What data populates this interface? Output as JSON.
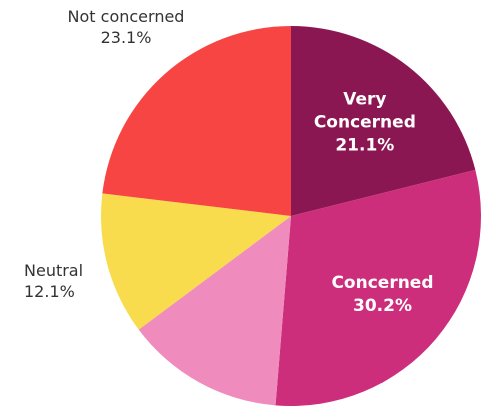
{
  "chart_data": {
    "type": "pie",
    "slices": [
      {
        "label_lines": [
          "Very",
          "Concerned"
        ],
        "percent_text": "21.1%",
        "value": 21.1,
        "color": "#8b1752",
        "label_inside": true
      },
      {
        "label_lines": [
          "Concerned"
        ],
        "percent_text": "30.2%",
        "value": 30.2,
        "color": "#cc2e7c",
        "label_inside": true
      },
      {
        "label_lines": [],
        "percent_text": "",
        "value": 13.5,
        "color": "#f08cbd",
        "label_inside": false
      },
      {
        "label_lines": [
          "Neutral"
        ],
        "percent_text": "12.1%",
        "value": 12.1,
        "color": "#f8dc4d",
        "label_inside": false
      },
      {
        "label_lines": [
          "Not concerned"
        ],
        "percent_text": "23.1%",
        "value": 23.1,
        "color": "#f74543",
        "label_inside": false
      }
    ]
  }
}
